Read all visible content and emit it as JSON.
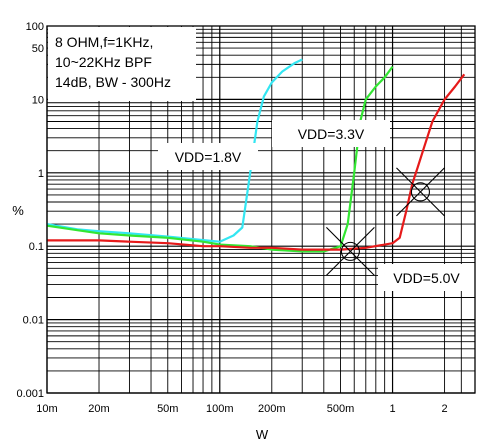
{
  "chart_data": {
    "type": "line",
    "xlabel": "W",
    "ylabel": "%",
    "x_scale": "log",
    "y_scale": "log",
    "xlim": [
      0.01,
      3
    ],
    "ylim": [
      0.001,
      100
    ],
    "x_ticks": [
      0.01,
      0.02,
      0.05,
      0.1,
      0.2,
      0.5,
      1,
      2
    ],
    "x_tick_labels": [
      "10m",
      "20m",
      "50m",
      "100m",
      "200m",
      "500m",
      "1",
      "2"
    ],
    "y_ticks": [
      0.001,
      0.01,
      0.1,
      1,
      10,
      50,
      100
    ],
    "y_tick_labels": [
      "0.001",
      "0.01",
      "0.1",
      "1",
      "10",
      "50",
      "100"
    ],
    "grid": true,
    "conditions_box": [
      "8 OHM,f=1KHz,",
      "10~22KHz BPF",
      "14dB, BW - 300Hz"
    ],
    "series": [
      {
        "name": "VDD=1.8V",
        "color": "#33e6f2",
        "x": [
          0.01,
          0.015,
          0.02,
          0.03,
          0.05,
          0.07,
          0.1,
          0.12,
          0.135,
          0.15,
          0.165,
          0.18,
          0.2,
          0.23,
          0.27,
          0.3
        ],
        "y": [
          0.2,
          0.17,
          0.16,
          0.15,
          0.135,
          0.125,
          0.115,
          0.14,
          0.18,
          1.0,
          5.0,
          11.0,
          17.0,
          24.0,
          31.0,
          35.0
        ]
      },
      {
        "name": "VDD=3.3V",
        "color": "#33e633",
        "x": [
          0.01,
          0.015,
          0.02,
          0.03,
          0.05,
          0.08,
          0.1,
          0.15,
          0.2,
          0.3,
          0.4,
          0.5,
          0.55,
          0.6,
          0.65,
          0.7,
          0.8,
          0.9,
          1.0
        ],
        "y": [
          0.19,
          0.165,
          0.15,
          0.14,
          0.13,
          0.115,
          0.105,
          0.1,
          0.09,
          0.085,
          0.085,
          0.1,
          0.2,
          1.0,
          5.0,
          10.0,
          15.0,
          20.0,
          28.0
        ]
      },
      {
        "name": "VDD=5.0V",
        "color": "#e61a1a",
        "x": [
          0.01,
          0.015,
          0.02,
          0.03,
          0.05,
          0.08,
          0.1,
          0.15,
          0.2,
          0.3,
          0.5,
          0.7,
          1.0,
          1.1,
          1.2,
          1.3,
          1.4,
          1.5,
          1.7,
          2.0,
          2.3,
          2.6
        ],
        "y": [
          0.12,
          0.12,
          0.12,
          0.115,
          0.11,
          0.1,
          0.1,
          0.095,
          0.095,
          0.09,
          0.09,
          0.095,
          0.11,
          0.13,
          0.3,
          0.7,
          1.2,
          2.0,
          5.0,
          10.0,
          15.0,
          22.0
        ]
      }
    ],
    "labels": [
      {
        "text": "VDD=1.8V",
        "series": "VDD=1.8V"
      },
      {
        "text": "VDD=3.3V",
        "series": "VDD=3.3V"
      },
      {
        "text": "VDD=5.0V",
        "series": "VDD=5.0V"
      }
    ],
    "markers": [
      {
        "x": 0.57,
        "y": 0.085
      },
      {
        "x": 1.45,
        "y": 0.55
      }
    ]
  }
}
